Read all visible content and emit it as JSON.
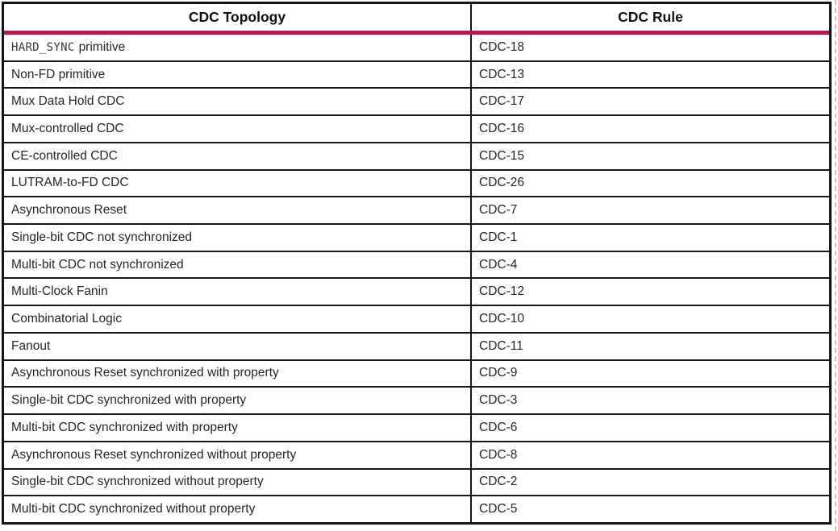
{
  "table": {
    "accent_color": "#AD1E4E",
    "border_color": "#161616",
    "text_color": "#262626",
    "headers": {
      "topology": "CDC Topology",
      "rule": "CDC Rule"
    },
    "rows": [
      {
        "topology_mono": "HARD_SYNC",
        "topology_text": "primitive",
        "rule": "CDC-18"
      },
      {
        "topology_text": "Non-FD primitive",
        "rule": "CDC-13"
      },
      {
        "topology_text": "Mux Data Hold CDC",
        "rule": "CDC-17"
      },
      {
        "topology_text": "Mux-controlled CDC",
        "rule": "CDC-16"
      },
      {
        "topology_text": "CE-controlled CDC",
        "rule": "CDC-15"
      },
      {
        "topology_text": "LUTRAM-to-FD CDC",
        "rule": "CDC-26"
      },
      {
        "topology_text": "Asynchronous Reset",
        "rule": "CDC-7"
      },
      {
        "topology_text": "Single-bit CDC not synchronized",
        "rule": "CDC-1"
      },
      {
        "topology_text": "Multi-bit CDC not synchronized",
        "rule": "CDC-4"
      },
      {
        "topology_text": "Multi-Clock Fanin",
        "rule": "CDC-12"
      },
      {
        "topology_text": "Combinatorial Logic",
        "rule": "CDC-10"
      },
      {
        "topology_text": "Fanout",
        "rule": "CDC-11"
      },
      {
        "topology_text": "Asynchronous Reset synchronized with property",
        "rule": "CDC-9"
      },
      {
        "topology_text": "Single-bit CDC synchronized with property",
        "rule": "CDC-3"
      },
      {
        "topology_text": "Multi-bit CDC synchronized with property",
        "rule": "CDC-6"
      },
      {
        "topology_text": "Asynchronous Reset synchronized without property",
        "rule": "CDC-8"
      },
      {
        "topology_text": "Single-bit CDC synchronized without property",
        "rule": "CDC-2"
      },
      {
        "topology_text": "Multi-bit CDC synchronized without property",
        "rule": "CDC-5"
      }
    ]
  }
}
